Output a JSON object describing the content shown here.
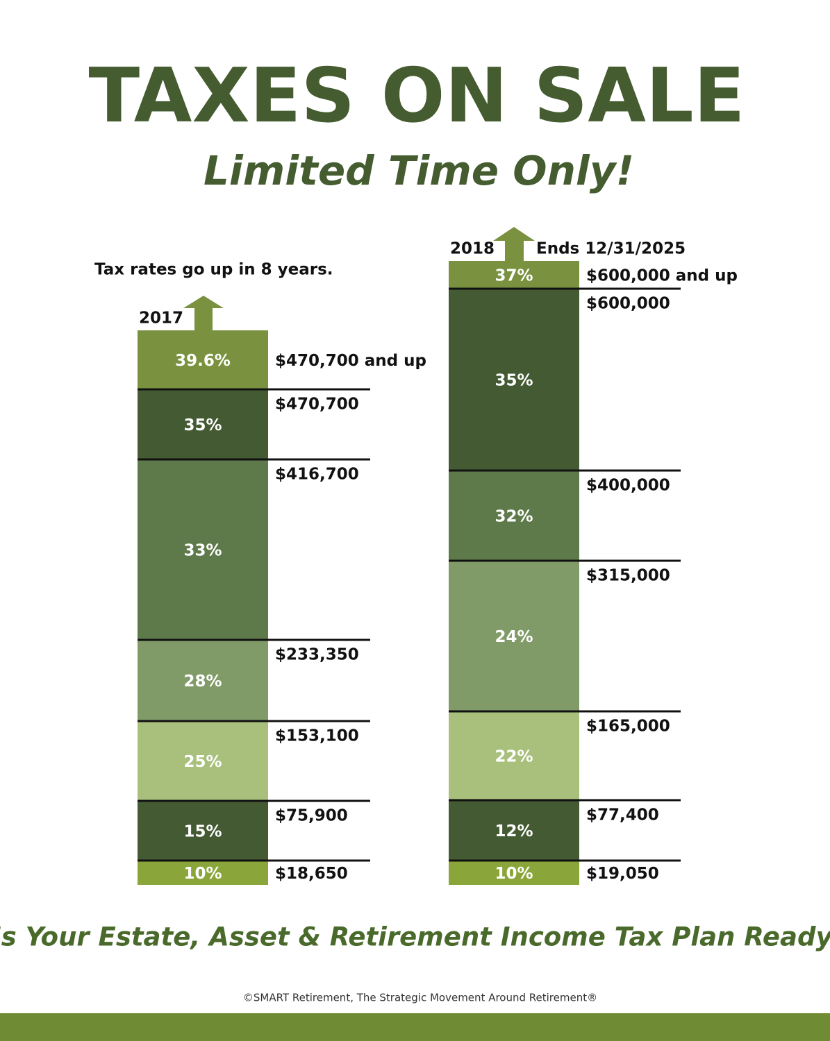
{
  "header": {
    "title": "TAXES ON SALE",
    "subtitle": "Limited Time Only!"
  },
  "note": "Tax rates go up in 8 years.",
  "columns": [
    {
      "year": "2017",
      "brackets": [
        {
          "rate": "39.6%",
          "threshold": "$470,700 and up",
          "color": "#7a923f"
        },
        {
          "rate": "35%",
          "threshold": "$470,700",
          "color": "#435a33"
        },
        {
          "rate": "33%",
          "threshold": "$416,700",
          "color": "#5e7a4a"
        },
        {
          "rate": "28%",
          "threshold": "$233,350",
          "color": "#809b68"
        },
        {
          "rate": "25%",
          "threshold": "$153,100",
          "color": "#a8c07c"
        },
        {
          "rate": "15%",
          "threshold": "$75,900",
          "color": "#435a33"
        },
        {
          "rate": "10%",
          "threshold": "$18,650",
          "color": "#8aa63a"
        }
      ]
    },
    {
      "year": "2018",
      "ends": "Ends 12/31/2025",
      "brackets": [
        {
          "rate": "37%",
          "threshold": "$600,000 and up",
          "color": "#7a923f"
        },
        {
          "rate": "35%",
          "threshold": "$600,000",
          "color": "#435a33"
        },
        {
          "rate": "32%",
          "threshold": "$400,000",
          "color": "#5e7a4a"
        },
        {
          "rate": "24%",
          "threshold": "$315,000",
          "color": "#809b68"
        },
        {
          "rate": "22%",
          "threshold": "$165,000",
          "color": "#a8c07c"
        },
        {
          "rate": "12%",
          "threshold": "$77,400",
          "color": "#435a33"
        },
        {
          "rate": "10%",
          "threshold": "$19,050",
          "color": "#8aa63a"
        }
      ]
    }
  ],
  "footer": {
    "question": "Is Your Estate, Asset & Retirement Income Tax Plan Ready?",
    "copyright": "©SMART Retirement, The Strategic Movement Around Retirement®"
  }
}
